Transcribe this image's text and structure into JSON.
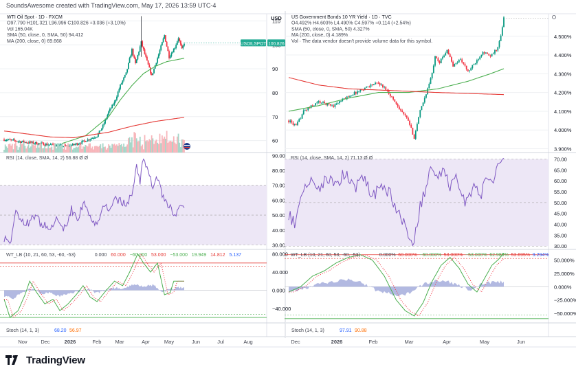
{
  "header": {
    "text": "SoundsAwesome created with TradingView.com, May 17, 2026 13:59 UTC-4"
  },
  "brand": {
    "name": "TradingView",
    "logo_icon": "tradingview-logo-icon"
  },
  "colors": {
    "up": "#089981",
    "down": "#f23645",
    "sma50": "#4caf50",
    "ma200": "#e53935",
    "rsi": "#7e57c2",
    "rsi_band": "#ede7f6",
    "wt1": "#4caf50",
    "wt2": "#f23645",
    "wt_hist": "#9fa8da",
    "vol_up": "#a5d6c8",
    "vol_down": "#f7b5ba",
    "price_tag": "#22ab94",
    "grid": "#eef0f3"
  },
  "chart_data": [
    {
      "type": "candlestick",
      "panel": "left-price",
      "legend": [
        {
          "key": "wti-title",
          "text": "WTI Oil Spot · 1D · FXCM"
        },
        {
          "key": "wti-ohlc",
          "text": "O97.790  H101.321  L96.996  C100.826  +3.036 (+3.10%)"
        },
        {
          "key": "wti-vol",
          "text": "Vol 165.04K"
        },
        {
          "key": "wti-sma",
          "text": "SMA (50, close, 0, SMA, 50) 94.412"
        },
        {
          "key": "wti-ma",
          "text": "MA (200, close, 0) 69.668"
        }
      ],
      "yaxis": {
        "label": "USD",
        "ticks": [
          60,
          70,
          80,
          90,
          100,
          110
        ],
        "range": [
          55,
          113
        ]
      },
      "last_price_label": "USOILSPOT",
      "last_price": "100.826",
      "x_ticks": [
        "Nov",
        "Dec",
        "2026",
        "Feb",
        "Mar",
        "Apr",
        "May",
        "Jun",
        "Jul",
        "Aug"
      ],
      "anchors": [
        [
          0,
          60.5
        ],
        [
          15,
          59.5
        ],
        [
          30,
          58.8
        ],
        [
          45,
          58.0
        ],
        [
          55,
          57.5
        ],
        [
          68,
          59.5
        ],
        [
          80,
          62
        ],
        [
          85,
          66
        ],
        [
          90,
          72
        ],
        [
          95,
          76
        ],
        [
          100,
          83
        ],
        [
          105,
          88
        ],
        [
          110,
          98
        ],
        [
          113,
          92
        ],
        [
          118,
          101
        ],
        [
          123,
          93
        ],
        [
          127,
          87
        ],
        [
          133,
          96
        ],
        [
          138,
          104
        ],
        [
          142,
          95
        ],
        [
          147,
          99
        ],
        [
          150,
          103
        ],
        [
          153,
          98
        ],
        [
          155,
          100.8
        ]
      ],
      "sma50": [
        [
          50,
          58.8
        ],
        [
          70,
          62
        ],
        [
          90,
          70
        ],
        [
          100,
          77
        ],
        [
          110,
          83
        ],
        [
          120,
          88
        ],
        [
          130,
          91
        ],
        [
          140,
          93
        ],
        [
          155,
          94.4
        ]
      ],
      "ma200": [
        [
          0,
          64
        ],
        [
          40,
          61.5
        ],
        [
          60,
          61.2
        ],
        [
          90,
          63.5
        ],
        [
          110,
          66
        ],
        [
          130,
          68
        ],
        [
          155,
          69.7
        ]
      ]
    },
    {
      "type": "candlestick",
      "panel": "right-price",
      "legend": [
        {
          "key": "us10y-title",
          "text": "US Government Bonds 10 YR Yield · 1D · TVC"
        },
        {
          "key": "us10y-ohlc",
          "text": "O4.492%  H4.603%  L4.490%  C4.597%  +0.114 (+2.54%)"
        },
        {
          "key": "us10y-sma",
          "text": "SMA (50, close, 0, SMA, 50) 4.327%"
        },
        {
          "key": "us10y-ma",
          "text": "MA (200, close, 0) 4.189%"
        },
        {
          "key": "us10y-vol",
          "text": "Vol · The data vendor doesn't provide volume data for this symbol."
        }
      ],
      "yaxis": {
        "ticks": [
          "3.900%",
          "4.000%",
          "4.100%",
          "4.200%",
          "4.300%",
          "4.400%",
          "4.500%"
        ],
        "ticks_num": [
          3.9,
          4.0,
          4.1,
          4.2,
          4.3,
          4.4,
          4.5
        ],
        "range": [
          3.88,
          4.62
        ]
      },
      "x_ticks": [
        "Dec",
        "2026",
        "Feb",
        "Mar",
        "Apr",
        "May",
        "Jun"
      ],
      "anchors": [
        [
          0,
          4.05
        ],
        [
          5,
          4.02
        ],
        [
          10,
          4.1
        ],
        [
          20,
          4.15
        ],
        [
          30,
          4.13
        ],
        [
          40,
          4.18
        ],
        [
          50,
          4.22
        ],
        [
          55,
          4.24
        ],
        [
          60,
          4.25
        ],
        [
          65,
          4.22
        ],
        [
          72,
          4.14
        ],
        [
          80,
          4.05
        ],
        [
          84,
          3.96
        ],
        [
          88,
          4.1
        ],
        [
          93,
          4.22
        ],
        [
          96,
          4.3
        ],
        [
          98,
          4.4
        ],
        [
          101,
          4.36
        ],
        [
          106,
          4.43
        ],
        [
          110,
          4.34
        ],
        [
          115,
          4.38
        ],
        [
          120,
          4.31
        ],
        [
          125,
          4.36
        ],
        [
          130,
          4.42
        ],
        [
          135,
          4.39
        ],
        [
          140,
          4.44
        ],
        [
          142,
          4.5
        ],
        [
          144,
          4.597
        ]
      ],
      "sma50": [
        [
          0,
          4.1
        ],
        [
          20,
          4.13
        ],
        [
          40,
          4.17
        ],
        [
          60,
          4.2
        ],
        [
          80,
          4.2
        ],
        [
          100,
          4.22
        ],
        [
          120,
          4.26
        ],
        [
          135,
          4.3
        ],
        [
          144,
          4.327
        ]
      ],
      "ma200": [
        [
          0,
          4.28
        ],
        [
          20,
          4.24
        ],
        [
          40,
          4.22
        ],
        [
          70,
          4.21
        ],
        [
          100,
          4.2
        ],
        [
          144,
          4.189
        ]
      ]
    },
    {
      "type": "line",
      "panel": "left-rsi",
      "legend": "RSI (14, close, SMA, 14, 2)  56.88  Ø  Ø",
      "ticks": [
        30,
        40,
        50,
        60,
        70,
        80,
        90
      ],
      "range": [
        27,
        92
      ],
      "band": [
        30,
        70
      ],
      "anchors": [
        [
          0,
          35
        ],
        [
          5,
          30
        ],
        [
          10,
          52
        ],
        [
          18,
          42
        ],
        [
          25,
          50
        ],
        [
          32,
          44
        ],
        [
          40,
          40
        ],
        [
          46,
          48
        ],
        [
          52,
          41
        ],
        [
          58,
          54
        ],
        [
          63,
          47
        ],
        [
          68,
          58
        ],
        [
          74,
          50
        ],
        [
          80,
          44
        ],
        [
          85,
          58
        ],
        [
          90,
          52
        ],
        [
          96,
          62
        ],
        [
          101,
          58
        ],
        [
          106,
          57
        ],
        [
          110,
          66
        ],
        [
          114,
          82
        ],
        [
          117,
          72
        ],
        [
          120,
          90
        ],
        [
          124,
          78
        ],
        [
          128,
          70
        ],
        [
          132,
          76
        ],
        [
          136,
          62
        ],
        [
          141,
          58
        ],
        [
          145,
          51
        ],
        [
          148,
          47
        ],
        [
          150,
          56.88
        ]
      ]
    },
    {
      "type": "line",
      "panel": "right-rsi",
      "legend": "RSI (14, close, SMA, 14, 2)  71.13  Ø  Ø",
      "ticks": [
        30,
        35,
        40,
        45,
        50,
        55,
        60,
        65,
        70
      ],
      "range": [
        28.5,
        73
      ],
      "band": [
        30,
        70
      ],
      "anchors": [
        [
          0,
          45
        ],
        [
          4,
          40
        ],
        [
          8,
          52
        ],
        [
          14,
          60
        ],
        [
          20,
          55
        ],
        [
          26,
          62
        ],
        [
          32,
          58
        ],
        [
          38,
          64
        ],
        [
          44,
          56
        ],
        [
          50,
          62
        ],
        [
          56,
          52
        ],
        [
          62,
          58
        ],
        [
          68,
          54
        ],
        [
          74,
          44
        ],
        [
          79,
          38
        ],
        [
          83,
          30.5
        ],
        [
          88,
          48
        ],
        [
          92,
          58
        ],
        [
          96,
          66
        ],
        [
          100,
          60
        ],
        [
          104,
          68
        ],
        [
          108,
          56
        ],
        [
          112,
          64
        ],
        [
          116,
          52
        ],
        [
          120,
          50
        ],
        [
          124,
          58
        ],
        [
          128,
          52
        ],
        [
          132,
          60
        ],
        [
          136,
          57
        ],
        [
          140,
          66
        ],
        [
          144,
          71.13
        ]
      ]
    },
    {
      "type": "line",
      "panel": "left-wt",
      "legend": [
        {
          "key": "wtl-name",
          "text": "WT_LB (10, 21, 60, 53, -60, -53)"
        },
        {
          "key": "wtl-v1",
          "text": "0.000"
        },
        {
          "key": "wtl-v2",
          "text": "60.000"
        },
        {
          "key": "wtl-v3",
          "text": "−60.000"
        },
        {
          "key": "wtl-v4",
          "text": "53.000"
        },
        {
          "key": "wtl-v5",
          "text": "−53.000"
        },
        {
          "key": "wtl-v6",
          "text": "19.949"
        },
        {
          "key": "wtl-v7",
          "text": "14.812"
        },
        {
          "key": "wtl-v8",
          "text": "5.137"
        }
      ],
      "ticks": [
        "−40.000",
        "0.000",
        "40.000",
        "80.000"
      ],
      "ticks_num": [
        -40,
        0,
        40,
        80
      ],
      "range": [
        -72,
        90
      ],
      "levels": [
        60,
        53,
        -60,
        -53
      ],
      "wt1": [
        [
          0,
          -20
        ],
        [
          5,
          -60
        ],
        [
          12,
          -45
        ],
        [
          18,
          -10
        ],
        [
          22,
          20
        ],
        [
          28,
          -5
        ],
        [
          35,
          -30
        ],
        [
          42,
          -20
        ],
        [
          48,
          -45
        ],
        [
          55,
          -30
        ],
        [
          62,
          -10
        ],
        [
          68,
          10
        ],
        [
          74,
          -15
        ],
        [
          80,
          -25
        ],
        [
          88,
          0
        ],
        [
          95,
          20
        ],
        [
          102,
          10
        ],
        [
          108,
          40
        ],
        [
          115,
          80
        ],
        [
          120,
          60
        ],
        [
          126,
          40
        ],
        [
          132,
          60
        ],
        [
          138,
          -10
        ],
        [
          143,
          -5
        ],
        [
          146,
          20
        ],
        [
          150,
          19.95
        ]
      ],
      "hist": [
        [
          0,
          -12
        ],
        [
          8,
          -18
        ],
        [
          16,
          -5
        ],
        [
          24,
          5
        ],
        [
          32,
          -8
        ],
        [
          40,
          -6
        ],
        [
          48,
          -14
        ],
        [
          56,
          -8
        ],
        [
          64,
          -2
        ],
        [
          72,
          2
        ],
        [
          80,
          -6
        ],
        [
          88,
          0
        ],
        [
          96,
          6
        ],
        [
          104,
          3
        ],
        [
          112,
          14
        ],
        [
          120,
          8
        ],
        [
          128,
          12
        ],
        [
          136,
          -4
        ],
        [
          144,
          4
        ],
        [
          150,
          5.1
        ]
      ]
    },
    {
      "type": "line",
      "panel": "right-wt",
      "legend": [
        {
          "key": "wtr-name",
          "text": "WT_LB (10, 21, 60, 53, -60, -53)"
        },
        {
          "key": "wtr-v1",
          "text": "0.000%"
        },
        {
          "key": "wtr-v2",
          "text": "60.000%"
        },
        {
          "key": "wtr-v3",
          "text": "−60.000%"
        },
        {
          "key": "wtr-v4",
          "text": "53.000%"
        },
        {
          "key": "wtr-v5",
          "text": "−53.000%"
        },
        {
          "key": "wtr-v6",
          "text": "62.989%"
        },
        {
          "key": "wtr-v7",
          "text": "53.695%"
        },
        {
          "key": "wtr-v8",
          "text": "9.294%"
        }
      ],
      "ticks": [
        "−50.000%",
        "−25.000%",
        "0.000%",
        "25.000%",
        "50.000%"
      ],
      "ticks_num": [
        -50,
        -25,
        0,
        25,
        50
      ],
      "range": [
        -68,
        70
      ],
      "levels": [
        60,
        53,
        -60,
        -53
      ],
      "wt1": [
        [
          0,
          -10
        ],
        [
          8,
          0
        ],
        [
          16,
          20
        ],
        [
          24,
          30
        ],
        [
          32,
          45
        ],
        [
          40,
          55
        ],
        [
          48,
          60
        ],
        [
          56,
          50
        ],
        [
          64,
          20
        ],
        [
          72,
          -25
        ],
        [
          78,
          -45
        ],
        [
          84,
          -55
        ],
        [
          90,
          -30
        ],
        [
          96,
          10
        ],
        [
          102,
          40
        ],
        [
          108,
          55
        ],
        [
          114,
          35
        ],
        [
          120,
          5
        ],
        [
          126,
          -10
        ],
        [
          132,
          20
        ],
        [
          136,
          40
        ],
        [
          140,
          50
        ],
        [
          144,
          62.99
        ]
      ],
      "hist": [
        [
          0,
          -10
        ],
        [
          10,
          -4
        ],
        [
          20,
          5
        ],
        [
          30,
          10
        ],
        [
          40,
          14
        ],
        [
          50,
          6
        ],
        [
          58,
          -6
        ],
        [
          66,
          -12
        ],
        [
          74,
          -18
        ],
        [
          82,
          -10
        ],
        [
          90,
          4
        ],
        [
          98,
          12
        ],
        [
          106,
          10
        ],
        [
          114,
          2
        ],
        [
          122,
          -6
        ],
        [
          130,
          6
        ],
        [
          138,
          8
        ],
        [
          144,
          9.3
        ]
      ]
    }
  ],
  "stoch_left": {
    "label": "Stoch (14, 1, 3)",
    "v1": "68.20",
    "v2": "56.97"
  },
  "stoch_right": {
    "label": "Stoch (14, 1, 3)",
    "v1": "97.91",
    "v2": "90.88"
  }
}
